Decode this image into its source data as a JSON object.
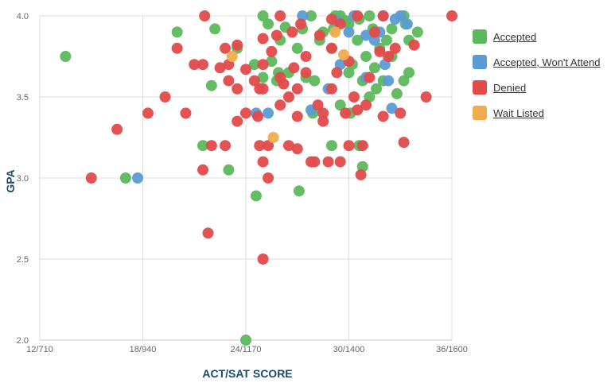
{
  "chart_data": {
    "type": "scatter",
    "xlabel": "ACT/SAT SCORE",
    "ylabel": "GPA",
    "x_ticks": [
      {
        "value": 12,
        "label": "12/710"
      },
      {
        "value": 18,
        "label": "18/940"
      },
      {
        "value": 24,
        "label": "24/1170"
      },
      {
        "value": 30,
        "label": "30/1400"
      },
      {
        "value": 36,
        "label": "36/1600"
      }
    ],
    "y_ticks": [
      {
        "value": 2.0,
        "label": "2.0"
      },
      {
        "value": 2.5,
        "label": "2.5"
      },
      {
        "value": 3.0,
        "label": "3.0"
      },
      {
        "value": 3.5,
        "label": "3.5"
      },
      {
        "value": 4.0,
        "label": "4.0"
      }
    ],
    "xlim": [
      12,
      36
    ],
    "ylim": [
      2.0,
      4.0
    ],
    "grid": true,
    "legend_position": "right",
    "series": [
      {
        "name": "Accepted",
        "color": "#5cb85c",
        "points": [
          [
            13.5,
            3.75
          ],
          [
            17.0,
            3.0
          ],
          [
            20.0,
            3.9
          ],
          [
            21.5,
            3.2
          ],
          [
            22.2,
            3.92
          ],
          [
            22.0,
            3.57
          ],
          [
            23.0,
            3.05
          ],
          [
            23.5,
            3.8
          ],
          [
            24.0,
            2.0
          ],
          [
            24.5,
            3.7
          ],
          [
            24.6,
            2.89
          ],
          [
            25.0,
            4.0
          ],
          [
            25.0,
            3.62
          ],
          [
            25.3,
            3.95
          ],
          [
            25.5,
            3.72
          ],
          [
            25.8,
            3.6
          ],
          [
            25.9,
            3.65
          ],
          [
            26.0,
            3.85
          ],
          [
            26.3,
            3.93
          ],
          [
            26.5,
            3.65
          ],
          [
            27.0,
            3.8
          ],
          [
            27.3,
            3.92
          ],
          [
            27.5,
            3.62
          ],
          [
            27.8,
            4.0
          ],
          [
            28.0,
            3.6
          ],
          [
            27.9,
            3.4
          ],
          [
            27.1,
            2.92
          ],
          [
            28.3,
            3.85
          ],
          [
            28.5,
            3.9
          ],
          [
            29.0,
            3.8
          ],
          [
            29.1,
            3.92
          ],
          [
            29.5,
            3.45
          ],
          [
            29.8,
            3.97
          ],
          [
            29.0,
            3.2
          ],
          [
            29.2,
            4.0
          ],
          [
            29.5,
            4.0
          ],
          [
            30.0,
            3.95
          ],
          [
            30.0,
            3.65
          ],
          [
            30.1,
            3.4
          ],
          [
            30.2,
            3.7
          ],
          [
            30.5,
            3.85
          ],
          [
            30.6,
            3.2
          ],
          [
            30.6,
            3.98
          ],
          [
            30.8,
            3.6
          ],
          [
            30.8,
            3.07
          ],
          [
            31.0,
            3.75
          ],
          [
            31.2,
            4.0
          ],
          [
            31.4,
            3.92
          ],
          [
            31.5,
            3.68
          ],
          [
            31.6,
            3.55
          ],
          [
            31.8,
            3.8
          ],
          [
            31.2,
            3.5
          ],
          [
            32.0,
            3.6
          ],
          [
            32.2,
            3.85
          ],
          [
            32.5,
            3.75
          ],
          [
            32.5,
            3.92
          ],
          [
            32.8,
            3.52
          ],
          [
            33.2,
            3.6
          ],
          [
            33.2,
            4.0
          ],
          [
            33.3,
            3.95
          ],
          [
            33.5,
            3.65
          ],
          [
            33.5,
            3.85
          ],
          [
            34.0,
            3.9
          ]
        ]
      },
      {
        "name": "Accepted, Won't Attend",
        "color": "#5b9bd5",
        "points": [
          [
            17.7,
            3.0
          ],
          [
            24.6,
            3.4
          ],
          [
            25.3,
            3.4
          ],
          [
            27.3,
            4.0
          ],
          [
            27.8,
            3.42
          ],
          [
            28.8,
            3.55
          ],
          [
            29.3,
            3.97
          ],
          [
            29.5,
            3.7
          ],
          [
            30.0,
            3.9
          ],
          [
            30.3,
            4.0
          ],
          [
            31.0,
            3.88
          ],
          [
            31.0,
            3.62
          ],
          [
            31.5,
            3.85
          ],
          [
            31.8,
            3.9
          ],
          [
            32.0,
            4.0
          ],
          [
            32.1,
            3.7
          ],
          [
            32.3,
            3.6
          ],
          [
            32.5,
            3.43
          ],
          [
            32.7,
            3.98
          ],
          [
            33.0,
            4.0
          ],
          [
            33.4,
            3.95
          ]
        ]
      },
      {
        "name": "Denied",
        "color": "#e34a4a",
        "points": [
          [
            15.0,
            3.0
          ],
          [
            16.5,
            3.3
          ],
          [
            18.3,
            3.4
          ],
          [
            19.3,
            3.5
          ],
          [
            20.0,
            3.8
          ],
          [
            20.5,
            3.4
          ],
          [
            21.0,
            3.7
          ],
          [
            21.5,
            3.05
          ],
          [
            21.5,
            3.7
          ],
          [
            22.0,
            3.2
          ],
          [
            21.6,
            4.0
          ],
          [
            21.8,
            2.66
          ],
          [
            22.5,
            3.68
          ],
          [
            22.8,
            3.2
          ],
          [
            22.8,
            3.8
          ],
          [
            23.0,
            3.6
          ],
          [
            23.0,
            3.7
          ],
          [
            23.5,
            3.55
          ],
          [
            23.5,
            3.82
          ],
          [
            23.5,
            3.35
          ],
          [
            24.0,
            3.67
          ],
          [
            24.0,
            3.4
          ],
          [
            24.5,
            3.6
          ],
          [
            24.7,
            3.38
          ],
          [
            24.8,
            3.2
          ],
          [
            24.8,
            3.55
          ],
          [
            25.0,
            3.1
          ],
          [
            25.0,
            3.7
          ],
          [
            25.0,
            3.86
          ],
          [
            25.0,
            2.5
          ],
          [
            25.0,
            3.55
          ],
          [
            25.3,
            3.2
          ],
          [
            25.3,
            3.0
          ],
          [
            25.5,
            3.78
          ],
          [
            25.8,
            3.88
          ],
          [
            26.0,
            3.45
          ],
          [
            26.0,
            3.62
          ],
          [
            26.0,
            4.0
          ],
          [
            26.5,
            3.2
          ],
          [
            26.5,
            3.5
          ],
          [
            26.7,
            3.9
          ],
          [
            26.8,
            3.68
          ],
          [
            27.0,
            3.55
          ],
          [
            27.0,
            3.38
          ],
          [
            27.0,
            3.18
          ],
          [
            27.2,
            3.95
          ],
          [
            27.5,
            3.65
          ],
          [
            27.5,
            3.75
          ],
          [
            27.8,
            3.1
          ],
          [
            28.0,
            3.1
          ],
          [
            28.2,
            3.45
          ],
          [
            28.3,
            3.88
          ],
          [
            28.5,
            3.4
          ],
          [
            28.5,
            3.35
          ],
          [
            28.8,
            3.1
          ],
          [
            29.0,
            3.8
          ],
          [
            29.0,
            3.55
          ],
          [
            29.3,
            3.65
          ],
          [
            29.5,
            3.1
          ],
          [
            29.5,
            3.95
          ],
          [
            29.8,
            3.4
          ],
          [
            30.0,
            3.2
          ],
          [
            30.0,
            3.72
          ],
          [
            30.3,
            3.5
          ],
          [
            30.5,
            3.42
          ],
          [
            30.5,
            4.0
          ],
          [
            30.7,
            3.02
          ],
          [
            30.8,
            3.2
          ],
          [
            31.0,
            3.45
          ],
          [
            31.2,
            3.62
          ],
          [
            31.5,
            3.9
          ],
          [
            32.0,
            3.38
          ],
          [
            32.0,
            4.0
          ],
          [
            32.3,
            3.75
          ],
          [
            32.7,
            3.8
          ],
          [
            33.0,
            3.4
          ],
          [
            33.2,
            3.22
          ],
          [
            33.8,
            3.82
          ],
          [
            34.5,
            3.5
          ],
          [
            36.0,
            4.0
          ],
          [
            29.0,
            3.98
          ],
          [
            31.8,
            3.78
          ],
          [
            26.2,
            3.58
          ]
        ]
      },
      {
        "name": "Wait Listed",
        "color": "#f0ad4e",
        "points": [
          [
            23.2,
            3.75
          ],
          [
            25.6,
            3.25
          ],
          [
            29.2,
            3.9
          ],
          [
            29.7,
            3.76
          ]
        ]
      }
    ]
  }
}
